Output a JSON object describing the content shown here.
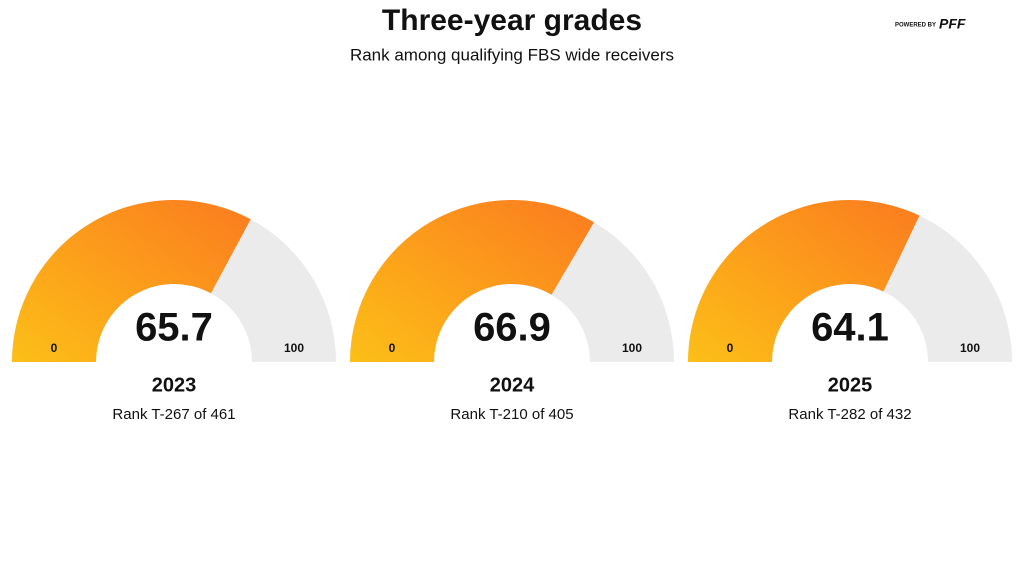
{
  "title": "Three-year grades",
  "subtitle": "Rank among qualifying FBS wide receivers",
  "logo": {
    "prefix": "POWERED BY",
    "name": "PFF"
  },
  "chart_data": [
    {
      "type": "gauge",
      "label": "2023",
      "value": 65.7,
      "note": "Rank T-267 of 461",
      "ylim": [
        0,
        100
      ],
      "yticks": [
        0,
        100
      ],
      "colors": [
        "#fcbf17",
        "#fb7b1f"
      ],
      "track_color": "#ebebeb"
    },
    {
      "type": "gauge",
      "label": "2024",
      "value": 66.9,
      "note": "Rank T-210 of 405",
      "ylim": [
        0,
        100
      ],
      "yticks": [
        0,
        100
      ],
      "colors": [
        "#fcbf17",
        "#fb7b1f"
      ],
      "track_color": "#ebebeb"
    },
    {
      "type": "gauge",
      "label": "2025",
      "value": 64.1,
      "note": "Rank T-282 of 432",
      "ylim": [
        0,
        100
      ],
      "yticks": [
        0,
        100
      ],
      "colors": [
        "#fcbf17",
        "#fb7b1f"
      ],
      "track_color": "#ebebeb"
    }
  ]
}
